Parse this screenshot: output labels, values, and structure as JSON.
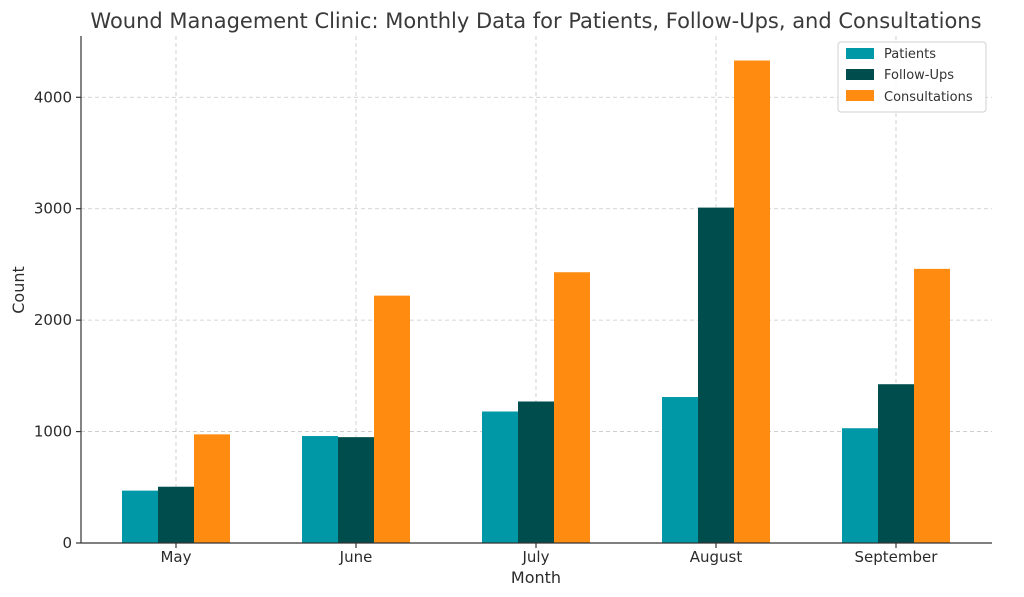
{
  "chart_data": {
    "type": "bar",
    "title": "Wound Management Clinic: Monthly Data for Patients, Follow-Ups, and Consultations",
    "xlabel": "Month",
    "ylabel": "Count",
    "categories": [
      "May",
      "June",
      "July",
      "August",
      "September"
    ],
    "series": [
      {
        "name": "Patients",
        "color": "#0097a7",
        "values": [
          470,
          960,
          1180,
          1310,
          1030
        ]
      },
      {
        "name": "Follow-Ups",
        "color": "#004d4d",
        "values": [
          505,
          950,
          1270,
          3010,
          1425
        ]
      },
      {
        "name": "Consultations",
        "color": "#ff8c10",
        "values": [
          975,
          2220,
          2430,
          4330,
          2460
        ]
      }
    ],
    "ylim": [
      0,
      4550
    ],
    "yticks": [
      0,
      1000,
      2000,
      3000,
      4000
    ],
    "grid": true,
    "legend_position": "top-right"
  }
}
